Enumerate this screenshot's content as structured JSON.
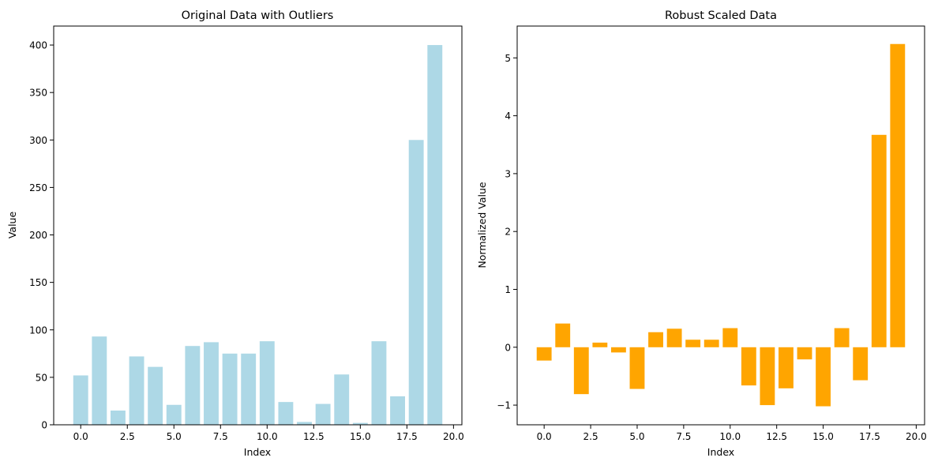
{
  "chart_data": [
    {
      "type": "bar",
      "title": "Original Data with Outliers",
      "xlabel": "Index",
      "ylabel": "Value",
      "color": "#add8e6",
      "x": [
        0,
        1,
        2,
        3,
        4,
        5,
        6,
        7,
        8,
        9,
        10,
        11,
        12,
        13,
        14,
        15,
        16,
        17,
        18,
        19
      ],
      "values": [
        52,
        93,
        15,
        72,
        61,
        21,
        83,
        87,
        75,
        75,
        88,
        24,
        3,
        22,
        53,
        2,
        88,
        30,
        300,
        400
      ],
      "xlim": [
        -1.45,
        20.45
      ],
      "ylim": [
        0,
        420
      ],
      "xticks": [
        0.0,
        2.5,
        5.0,
        7.5,
        10.0,
        12.5,
        15.0,
        17.5,
        20.0
      ],
      "xtick_labels": [
        "0.0",
        "2.5",
        "5.0",
        "7.5",
        "10.0",
        "12.5",
        "15.0",
        "17.5",
        "20.0"
      ],
      "yticks": [
        0,
        50,
        100,
        150,
        200,
        250,
        300,
        350,
        400
      ],
      "ytick_labels": [
        "0",
        "50",
        "100",
        "150",
        "200",
        "250",
        "300",
        "350",
        "400"
      ],
      "grid": false
    },
    {
      "type": "bar",
      "title": "Robust Scaled Data",
      "xlabel": "Index",
      "ylabel": "Normalized Value",
      "color": "#ffa500",
      "x": [
        0,
        1,
        2,
        3,
        4,
        5,
        6,
        7,
        8,
        9,
        10,
        11,
        12,
        13,
        14,
        15,
        16,
        17,
        18,
        19
      ],
      "values": [
        -0.23,
        0.41,
        -0.81,
        0.08,
        -0.09,
        -0.72,
        0.26,
        0.32,
        0.13,
        0.13,
        0.33,
        -0.66,
        -1.0,
        -0.71,
        -0.21,
        -1.02,
        0.33,
        -0.57,
        3.67,
        5.24
      ],
      "xlim": [
        -1.45,
        20.45
      ],
      "ylim": [
        -1.34,
        5.55
      ],
      "xticks": [
        0.0,
        2.5,
        5.0,
        7.5,
        10.0,
        12.5,
        15.0,
        17.5,
        20.0
      ],
      "xtick_labels": [
        "0.0",
        "2.5",
        "5.0",
        "7.5",
        "10.0",
        "12.5",
        "15.0",
        "17.5",
        "20.0"
      ],
      "yticks": [
        -1,
        0,
        1,
        2,
        3,
        4,
        5
      ],
      "ytick_labels": [
        "−1",
        "0",
        "1",
        "2",
        "3",
        "4",
        "5"
      ],
      "grid": false
    }
  ]
}
